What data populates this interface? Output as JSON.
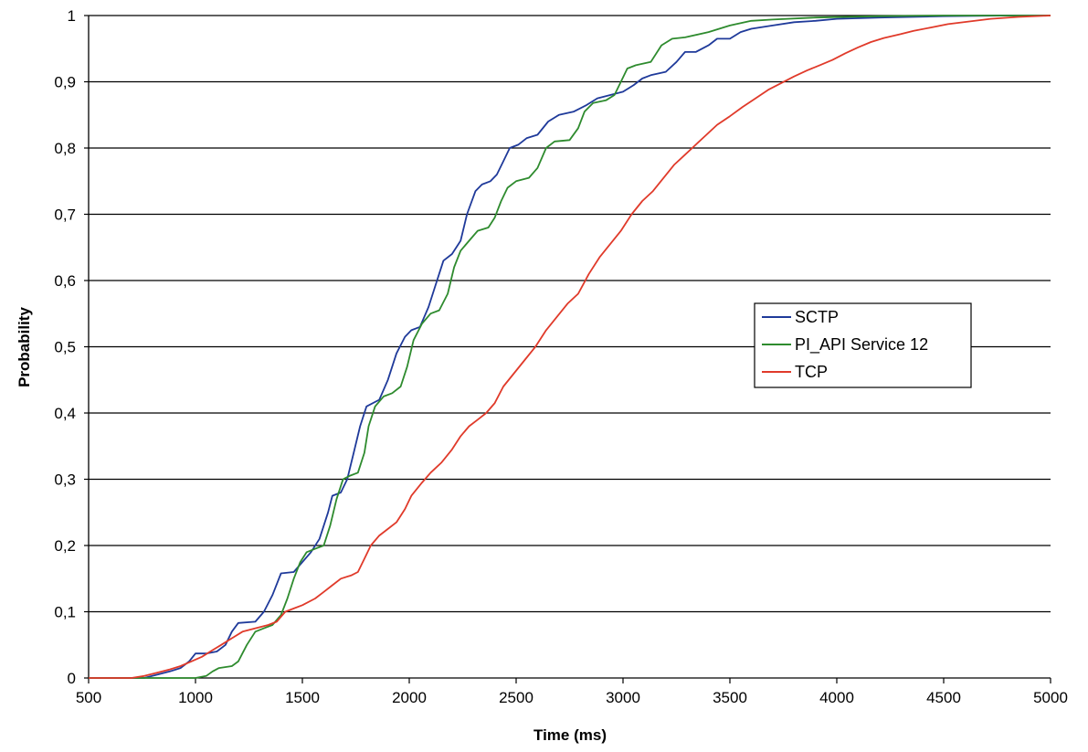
{
  "chart_data": {
    "type": "line",
    "title": "",
    "xlabel": "Time (ms)",
    "ylabel": "Probability",
    "xlim": [
      500,
      5000
    ],
    "ylim": [
      0,
      1
    ],
    "x_ticks": [
      500,
      1000,
      1500,
      2000,
      2500,
      3000,
      3500,
      4000,
      4500,
      5000
    ],
    "x_tick_labels": [
      "500",
      "1000",
      "1500",
      "2000",
      "2500",
      "3000",
      "3500",
      "4000",
      "4500",
      "5000"
    ],
    "y_ticks": [
      0,
      0.1,
      0.2,
      0.3,
      0.4,
      0.5,
      0.6,
      0.7,
      0.8,
      0.9,
      1
    ],
    "y_tick_labels": [
      "0",
      "0,1",
      "0,2",
      "0,3",
      "0,4",
      "0,5",
      "0,6",
      "0,7",
      "0,8",
      "0,9",
      "1"
    ],
    "grid": "horizontal",
    "legend_position": "center-right",
    "series": [
      {
        "name": "SCTP",
        "color": "#1f3a9a",
        "points": [
          [
            500,
            0
          ],
          [
            680,
            0
          ],
          [
            760,
            0
          ],
          [
            820,
            0.005
          ],
          [
            880,
            0.01
          ],
          [
            930,
            0.015
          ],
          [
            970,
            0.025
          ],
          [
            1000,
            0.037
          ],
          [
            1050,
            0.037
          ],
          [
            1100,
            0.04
          ],
          [
            1140,
            0.05
          ],
          [
            1170,
            0.07
          ],
          [
            1200,
            0.083
          ],
          [
            1280,
            0.085
          ],
          [
            1320,
            0.1
          ],
          [
            1360,
            0.125
          ],
          [
            1400,
            0.158
          ],
          [
            1460,
            0.16
          ],
          [
            1500,
            0.175
          ],
          [
            1540,
            0.19
          ],
          [
            1580,
            0.21
          ],
          [
            1620,
            0.25
          ],
          [
            1640,
            0.275
          ],
          [
            1680,
            0.28
          ],
          [
            1710,
            0.3
          ],
          [
            1740,
            0.34
          ],
          [
            1770,
            0.38
          ],
          [
            1800,
            0.41
          ],
          [
            1860,
            0.42
          ],
          [
            1900,
            0.45
          ],
          [
            1940,
            0.49
          ],
          [
            1980,
            0.515
          ],
          [
            2010,
            0.525
          ],
          [
            2050,
            0.53
          ],
          [
            2090,
            0.56
          ],
          [
            2130,
            0.6
          ],
          [
            2160,
            0.63
          ],
          [
            2200,
            0.64
          ],
          [
            2240,
            0.66
          ],
          [
            2270,
            0.7
          ],
          [
            2310,
            0.735
          ],
          [
            2340,
            0.745
          ],
          [
            2380,
            0.75
          ],
          [
            2410,
            0.76
          ],
          [
            2440,
            0.78
          ],
          [
            2470,
            0.8
          ],
          [
            2510,
            0.805
          ],
          [
            2550,
            0.815
          ],
          [
            2600,
            0.82
          ],
          [
            2650,
            0.84
          ],
          [
            2700,
            0.85
          ],
          [
            2770,
            0.855
          ],
          [
            2830,
            0.865
          ],
          [
            2880,
            0.875
          ],
          [
            2940,
            0.88
          ],
          [
            3000,
            0.885
          ],
          [
            3050,
            0.895
          ],
          [
            3090,
            0.905
          ],
          [
            3130,
            0.91
          ],
          [
            3200,
            0.915
          ],
          [
            3250,
            0.93
          ],
          [
            3290,
            0.945
          ],
          [
            3340,
            0.945
          ],
          [
            3400,
            0.955
          ],
          [
            3440,
            0.965
          ],
          [
            3500,
            0.965
          ],
          [
            3550,
            0.975
          ],
          [
            3600,
            0.98
          ],
          [
            3700,
            0.985
          ],
          [
            3800,
            0.99
          ],
          [
            3900,
            0.992
          ],
          [
            4000,
            0.995
          ],
          [
            4200,
            0.997
          ],
          [
            4500,
            0.999
          ],
          [
            4800,
            1
          ],
          [
            5000,
            1
          ]
        ]
      },
      {
        "name": "PI_API Service 12",
        "color": "#2e8b2e",
        "points": [
          [
            500,
            0
          ],
          [
            1000,
            0
          ],
          [
            1050,
            0.003
          ],
          [
            1080,
            0.01
          ],
          [
            1110,
            0.015
          ],
          [
            1170,
            0.018
          ],
          [
            1200,
            0.025
          ],
          [
            1240,
            0.05
          ],
          [
            1280,
            0.07
          ],
          [
            1320,
            0.075
          ],
          [
            1360,
            0.08
          ],
          [
            1400,
            0.095
          ],
          [
            1430,
            0.12
          ],
          [
            1460,
            0.15
          ],
          [
            1490,
            0.175
          ],
          [
            1520,
            0.19
          ],
          [
            1560,
            0.195
          ],
          [
            1600,
            0.2
          ],
          [
            1630,
            0.23
          ],
          [
            1660,
            0.27
          ],
          [
            1690,
            0.3
          ],
          [
            1720,
            0.305
          ],
          [
            1760,
            0.31
          ],
          [
            1790,
            0.34
          ],
          [
            1810,
            0.38
          ],
          [
            1840,
            0.41
          ],
          [
            1880,
            0.425
          ],
          [
            1920,
            0.43
          ],
          [
            1960,
            0.44
          ],
          [
            1990,
            0.47
          ],
          [
            2020,
            0.51
          ],
          [
            2060,
            0.535
          ],
          [
            2100,
            0.55
          ],
          [
            2140,
            0.555
          ],
          [
            2180,
            0.58
          ],
          [
            2210,
            0.62
          ],
          [
            2240,
            0.645
          ],
          [
            2280,
            0.66
          ],
          [
            2320,
            0.675
          ],
          [
            2370,
            0.68
          ],
          [
            2400,
            0.695
          ],
          [
            2430,
            0.72
          ],
          [
            2460,
            0.74
          ],
          [
            2500,
            0.75
          ],
          [
            2560,
            0.755
          ],
          [
            2600,
            0.77
          ],
          [
            2640,
            0.8
          ],
          [
            2680,
            0.81
          ],
          [
            2750,
            0.812
          ],
          [
            2790,
            0.83
          ],
          [
            2820,
            0.855
          ],
          [
            2860,
            0.868
          ],
          [
            2920,
            0.872
          ],
          [
            2960,
            0.88
          ],
          [
            2990,
            0.9
          ],
          [
            3020,
            0.92
          ],
          [
            3060,
            0.925
          ],
          [
            3130,
            0.93
          ],
          [
            3180,
            0.955
          ],
          [
            3230,
            0.965
          ],
          [
            3290,
            0.967
          ],
          [
            3400,
            0.975
          ],
          [
            3500,
            0.985
          ],
          [
            3600,
            0.992
          ],
          [
            3700,
            0.994
          ],
          [
            3900,
            0.997
          ],
          [
            4200,
            0.999
          ],
          [
            4500,
            1
          ],
          [
            5000,
            1
          ]
        ]
      },
      {
        "name": "TCP",
        "color": "#e03a2a",
        "points": [
          [
            500,
            0
          ],
          [
            700,
            0
          ],
          [
            760,
            0.003
          ],
          [
            820,
            0.008
          ],
          [
            880,
            0.013
          ],
          [
            930,
            0.018
          ],
          [
            980,
            0.025
          ],
          [
            1030,
            0.032
          ],
          [
            1080,
            0.042
          ],
          [
            1120,
            0.05
          ],
          [
            1170,
            0.06
          ],
          [
            1220,
            0.07
          ],
          [
            1280,
            0.075
          ],
          [
            1340,
            0.08
          ],
          [
            1380,
            0.085
          ],
          [
            1420,
            0.1
          ],
          [
            1460,
            0.105
          ],
          [
            1500,
            0.11
          ],
          [
            1560,
            0.12
          ],
          [
            1600,
            0.13
          ],
          [
            1640,
            0.14
          ],
          [
            1680,
            0.15
          ],
          [
            1730,
            0.155
          ],
          [
            1760,
            0.16
          ],
          [
            1790,
            0.18
          ],
          [
            1820,
            0.2
          ],
          [
            1860,
            0.215
          ],
          [
            1900,
            0.225
          ],
          [
            1940,
            0.235
          ],
          [
            1980,
            0.255
          ],
          [
            2010,
            0.275
          ],
          [
            2060,
            0.295
          ],
          [
            2100,
            0.31
          ],
          [
            2150,
            0.325
          ],
          [
            2200,
            0.345
          ],
          [
            2240,
            0.365
          ],
          [
            2280,
            0.38
          ],
          [
            2320,
            0.39
          ],
          [
            2360,
            0.4
          ],
          [
            2400,
            0.415
          ],
          [
            2440,
            0.44
          ],
          [
            2490,
            0.46
          ],
          [
            2540,
            0.48
          ],
          [
            2590,
            0.5
          ],
          [
            2640,
            0.525
          ],
          [
            2690,
            0.545
          ],
          [
            2740,
            0.565
          ],
          [
            2790,
            0.58
          ],
          [
            2840,
            0.61
          ],
          [
            2890,
            0.635
          ],
          [
            2940,
            0.655
          ],
          [
            2990,
            0.675
          ],
          [
            3040,
            0.7
          ],
          [
            3090,
            0.72
          ],
          [
            3140,
            0.735
          ],
          [
            3190,
            0.755
          ],
          [
            3240,
            0.775
          ],
          [
            3290,
            0.79
          ],
          [
            3340,
            0.805
          ],
          [
            3390,
            0.82
          ],
          [
            3440,
            0.835
          ],
          [
            3500,
            0.848
          ],
          [
            3560,
            0.862
          ],
          [
            3620,
            0.875
          ],
          [
            3680,
            0.888
          ],
          [
            3740,
            0.898
          ],
          [
            3800,
            0.908
          ],
          [
            3860,
            0.917
          ],
          [
            3920,
            0.925
          ],
          [
            3980,
            0.933
          ],
          [
            4040,
            0.943
          ],
          [
            4100,
            0.952
          ],
          [
            4160,
            0.96
          ],
          [
            4220,
            0.966
          ],
          [
            4300,
            0.972
          ],
          [
            4360,
            0.977
          ],
          [
            4440,
            0.982
          ],
          [
            4520,
            0.987
          ],
          [
            4620,
            0.991
          ],
          [
            4720,
            0.995
          ],
          [
            4850,
            0.998
          ],
          [
            5000,
            1
          ]
        ]
      }
    ]
  }
}
